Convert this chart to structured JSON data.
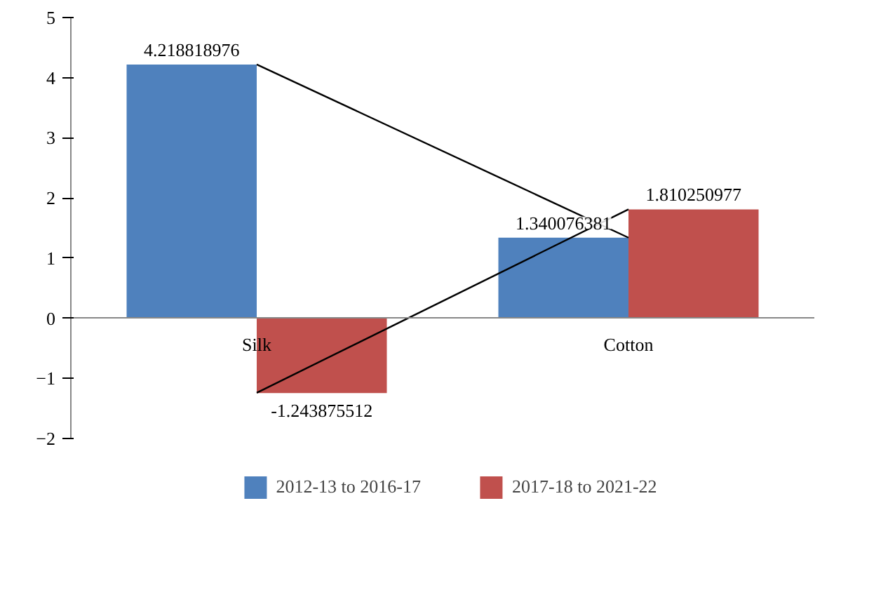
{
  "chart_data": {
    "type": "bar",
    "categories": [
      "Silk",
      "Cotton"
    ],
    "series": [
      {
        "name": "2012-13 to 2016-17",
        "color": "#4f81bd",
        "values": [
          4.218818976,
          1.340076381
        ],
        "value_labels": [
          "4.218818976",
          "1.340076381"
        ]
      },
      {
        "name": "2017-18 to 2021-22",
        "color": "#c0504d",
        "values": [
          -1.243875512,
          1.810250977
        ],
        "value_labels": [
          "-1.243875512",
          "1.810250977"
        ]
      },
      {
        "type": "line",
        "color": "#000000",
        "values": [
          4.22,
          1.34
        ]
      },
      {
        "type": "line",
        "color": "#000000",
        "values": [
          -1.24,
          1.81
        ]
      }
    ],
    "ylim": [
      -2,
      5
    ],
    "yticks": [
      -2,
      -1,
      0,
      1,
      2,
      3,
      4,
      5
    ],
    "legend": "bottom"
  }
}
